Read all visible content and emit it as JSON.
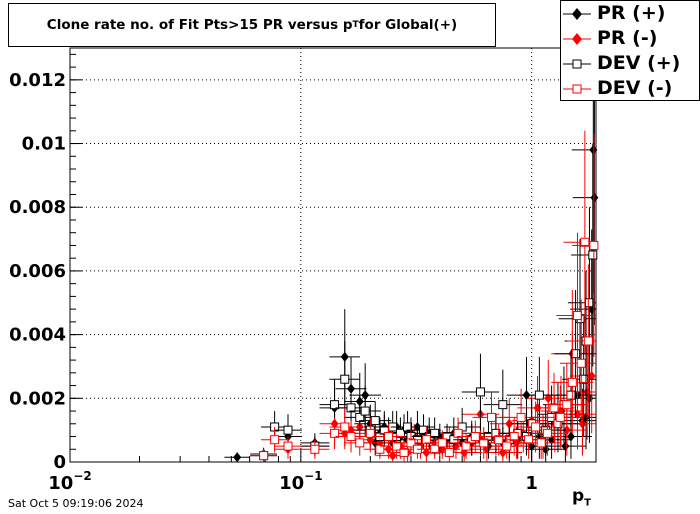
{
  "chart_data": {
    "type": "scatter",
    "title_main": "Clone rate no. of Fit Pts>15 PR versus p",
    "title_sub": "T",
    "title_tail": " for Global(+)",
    "xlabel_main": "p",
    "xlabel_sub": "T",
    "x_scale": "log",
    "xlim": [
      0.01,
      1.9
    ],
    "ylim": [
      0,
      0.013
    ],
    "x_ticks": [
      {
        "value": 0.01,
        "base": "10",
        "exp": "−2"
      },
      {
        "value": 0.1,
        "base": "10",
        "exp": "−1"
      },
      {
        "value": 1,
        "base": "1",
        "exp": ""
      }
    ],
    "y_ticks": [
      {
        "value": 0,
        "label": "0"
      },
      {
        "value": 0.002,
        "label": "0.002"
      },
      {
        "value": 0.004,
        "label": "0.004"
      },
      {
        "value": 0.006,
        "label": "0.006"
      },
      {
        "value": 0.008,
        "label": "0.008"
      },
      {
        "value": 0.01,
        "label": "0.01"
      },
      {
        "value": 0.012,
        "label": "0.012"
      }
    ],
    "grid": true,
    "legend_position": "top-right",
    "footer": "Sat Oct  5 09:19:06 2024",
    "series": [
      {
        "name": "PR (+)",
        "marker": "diamond",
        "filled": true,
        "color": "#000000",
        "points": [
          [
            0.053,
            0.00015,
            0.00015
          ],
          [
            0.069,
            0.00025,
            0.0002
          ],
          [
            0.088,
            0.0008,
            0.0004
          ],
          [
            0.115,
            0.0006,
            0.0003
          ],
          [
            0.14,
            0.0017,
            0.0008
          ],
          [
            0.155,
            0.0033,
            0.0015
          ],
          [
            0.165,
            0.0023,
            0.001
          ],
          [
            0.18,
            0.0019,
            0.0009
          ],
          [
            0.19,
            0.0021,
            0.001
          ],
          [
            0.2,
            0.0012,
            0.0006
          ],
          [
            0.21,
            0.0006,
            0.0004
          ],
          [
            0.22,
            0.0009,
            0.0005
          ],
          [
            0.23,
            0.0011,
            0.0005
          ],
          [
            0.24,
            0.0009,
            0.0005
          ],
          [
            0.25,
            0.0006,
            0.0004
          ],
          [
            0.26,
            0.0011,
            0.0005
          ],
          [
            0.27,
            0.0008,
            0.0004
          ],
          [
            0.28,
            0.001,
            0.0005
          ],
          [
            0.29,
            0.0007,
            0.0004
          ],
          [
            0.3,
            0.0009,
            0.0005
          ],
          [
            0.32,
            0.0011,
            0.0005
          ],
          [
            0.34,
            0.0008,
            0.0004
          ],
          [
            0.36,
            0.0009,
            0.0005
          ],
          [
            0.38,
            0.0006,
            0.0004
          ],
          [
            0.4,
            0.0008,
            0.0004
          ],
          [
            0.43,
            0.0007,
            0.0004
          ],
          [
            0.46,
            0.0009,
            0.0005
          ],
          [
            0.5,
            0.0006,
            0.0004
          ],
          [
            0.55,
            0.0008,
            0.0005
          ],
          [
            0.6,
            0.0007,
            0.0005
          ],
          [
            0.65,
            0.0005,
            0.0004
          ],
          [
            0.7,
            0.0009,
            0.0006
          ],
          [
            0.75,
            0.0006,
            0.0005
          ],
          [
            0.8,
            0.0006,
            0.0005
          ],
          [
            0.87,
            0.0007,
            0.0006
          ],
          [
            0.95,
            0.0021,
            0.0012
          ],
          [
            1.0,
            0.0005,
            0.0005
          ],
          [
            1.08,
            0.0008,
            0.0007
          ],
          [
            1.15,
            0.0004,
            0.0004
          ],
          [
            1.22,
            0.0007,
            0.0006
          ],
          [
            1.3,
            0.0015,
            0.001
          ],
          [
            1.4,
            0.0005,
            0.0005
          ],
          [
            1.48,
            0.0008,
            0.0007
          ],
          [
            1.58,
            0.0021,
            0.0013
          ],
          [
            1.66,
            0.0013,
            0.001
          ],
          [
            1.72,
            0.0014,
            0.001
          ],
          [
            1.78,
            0.002,
            0.0014
          ],
          [
            1.82,
            0.0048,
            0.0025
          ],
          [
            1.85,
            0.0098,
            0.0045
          ],
          [
            1.87,
            0.0083,
            0.004
          ]
        ]
      },
      {
        "name": "PR (-)",
        "marker": "diamond",
        "filled": true,
        "color": "#ff0000",
        "points": [
          [
            0.069,
            0.0002,
            0.0002
          ],
          [
            0.088,
            0.0004,
            0.0003
          ],
          [
            0.115,
            0.0005,
            0.0003
          ],
          [
            0.14,
            0.0012,
            0.0007
          ],
          [
            0.155,
            0.0009,
            0.0005
          ],
          [
            0.165,
            0.001,
            0.0006
          ],
          [
            0.18,
            0.0011,
            0.0006
          ],
          [
            0.2,
            0.0007,
            0.0004
          ],
          [
            0.22,
            0.0006,
            0.0004
          ],
          [
            0.24,
            0.0004,
            0.0003
          ],
          [
            0.25,
            0.0002,
            0.0002
          ],
          [
            0.27,
            0.0005,
            0.0004
          ],
          [
            0.29,
            0.0003,
            0.0003
          ],
          [
            0.31,
            0.0008,
            0.0004
          ],
          [
            0.33,
            0.0005,
            0.0004
          ],
          [
            0.35,
            0.0003,
            0.0003
          ],
          [
            0.38,
            0.0006,
            0.0004
          ],
          [
            0.41,
            0.0004,
            0.0003
          ],
          [
            0.44,
            0.0007,
            0.0004
          ],
          [
            0.47,
            0.0005,
            0.0004
          ],
          [
            0.51,
            0.0003,
            0.0003
          ],
          [
            0.55,
            0.0006,
            0.0004
          ],
          [
            0.6,
            0.0015,
            0.0008
          ],
          [
            0.64,
            0.0004,
            0.0004
          ],
          [
            0.7,
            0.0007,
            0.0005
          ],
          [
            0.75,
            0.0003,
            0.0003
          ],
          [
            0.8,
            0.0012,
            0.0008
          ],
          [
            0.86,
            0.0006,
            0.0005
          ],
          [
            0.92,
            0.0009,
            0.0006
          ],
          [
            1.0,
            0.0013,
            0.0008
          ],
          [
            1.06,
            0.0017,
            0.001
          ],
          [
            1.12,
            0.0008,
            0.0007
          ],
          [
            1.18,
            0.002,
            0.0012
          ],
          [
            1.26,
            0.0012,
            0.0009
          ],
          [
            1.34,
            0.0016,
            0.0011
          ],
          [
            1.42,
            0.001,
            0.0008
          ],
          [
            1.5,
            0.0034,
            0.002
          ],
          [
            1.58,
            0.0015,
            0.0011
          ],
          [
            1.66,
            0.0012,
            0.001
          ],
          [
            1.74,
            0.0022,
            0.0015
          ],
          [
            1.82,
            0.0027,
            0.0018
          ]
        ]
      },
      {
        "name": "DEV (+)",
        "marker": "square",
        "filled": false,
        "color": "#000000",
        "points": [
          [
            0.069,
            0.0002,
            0.0002
          ],
          [
            0.077,
            0.0011,
            0.0005
          ],
          [
            0.088,
            0.001,
            0.0005
          ],
          [
            0.115,
            0.0005,
            0.0003
          ],
          [
            0.14,
            0.0018,
            0.0008
          ],
          [
            0.155,
            0.0026,
            0.0012
          ],
          [
            0.165,
            0.0017,
            0.0008
          ],
          [
            0.18,
            0.0014,
            0.0007
          ],
          [
            0.19,
            0.0016,
            0.0008
          ],
          [
            0.2,
            0.001,
            0.0005
          ],
          [
            0.21,
            0.0013,
            0.0006
          ],
          [
            0.22,
            0.0008,
            0.0005
          ],
          [
            0.23,
            0.001,
            0.0005
          ],
          [
            0.25,
            0.0011,
            0.0005
          ],
          [
            0.26,
            0.0008,
            0.0004
          ],
          [
            0.27,
            0.0009,
            0.0005
          ],
          [
            0.29,
            0.0011,
            0.0005
          ],
          [
            0.3,
            0.0008,
            0.0004
          ],
          [
            0.32,
            0.0007,
            0.0004
          ],
          [
            0.34,
            0.001,
            0.0005
          ],
          [
            0.36,
            0.0008,
            0.0004
          ],
          [
            0.38,
            0.0009,
            0.0005
          ],
          [
            0.4,
            0.0006,
            0.0004
          ],
          [
            0.43,
            0.0008,
            0.0004
          ],
          [
            0.46,
            0.0007,
            0.0004
          ],
          [
            0.5,
            0.0011,
            0.0006
          ],
          [
            0.55,
            0.0007,
            0.0005
          ],
          [
            0.6,
            0.0022,
            0.0012
          ],
          [
            0.65,
            0.0008,
            0.0005
          ],
          [
            0.7,
            0.0009,
            0.0006
          ],
          [
            0.75,
            0.0018,
            0.0011
          ],
          [
            0.8,
            0.0007,
            0.0005
          ],
          [
            0.87,
            0.0009,
            0.0006
          ],
          [
            0.95,
            0.0008,
            0.0006
          ],
          [
            1.0,
            0.0012,
            0.0008
          ],
          [
            1.08,
            0.0021,
            0.0012
          ],
          [
            1.15,
            0.001,
            0.0008
          ],
          [
            1.22,
            0.0014,
            0.001
          ],
          [
            1.3,
            0.0012,
            0.0009
          ],
          [
            1.38,
            0.0018,
            0.0012
          ],
          [
            1.48,
            0.0021,
            0.0014
          ],
          [
            1.55,
            0.0034,
            0.002
          ],
          [
            1.62,
            0.0045,
            0.0025
          ],
          [
            1.68,
            0.0026,
            0.0018
          ],
          [
            1.72,
            0.0038,
            0.0022
          ],
          [
            1.78,
            0.005,
            0.003
          ],
          [
            1.84,
            0.0065,
            0.0035
          ]
        ]
      },
      {
        "name": "DEV (-)",
        "marker": "square",
        "filled": false,
        "color": "#ff0000",
        "points": [
          [
            0.069,
            0.0002,
            0.0002
          ],
          [
            0.077,
            0.0007,
            0.0004
          ],
          [
            0.088,
            0.0005,
            0.0003
          ],
          [
            0.115,
            0.0004,
            0.0003
          ],
          [
            0.14,
            0.0009,
            0.0005
          ],
          [
            0.155,
            0.0011,
            0.0006
          ],
          [
            0.165,
            0.0008,
            0.0005
          ],
          [
            0.18,
            0.0006,
            0.0004
          ],
          [
            0.2,
            0.0009,
            0.0005
          ],
          [
            0.22,
            0.0004,
            0.0003
          ],
          [
            0.24,
            0.0008,
            0.0004
          ],
          [
            0.26,
            0.0005,
            0.0004
          ],
          [
            0.28,
            0.0003,
            0.0003
          ],
          [
            0.3,
            0.0006,
            0.0004
          ],
          [
            0.32,
            0.0004,
            0.0003
          ],
          [
            0.35,
            0.0007,
            0.0004
          ],
          [
            0.38,
            0.0004,
            0.0003
          ],
          [
            0.41,
            0.0006,
            0.0004
          ],
          [
            0.44,
            0.0003,
            0.0003
          ],
          [
            0.48,
            0.0009,
            0.0005
          ],
          [
            0.52,
            0.0005,
            0.0004
          ],
          [
            0.57,
            0.0008,
            0.0005
          ],
          [
            0.62,
            0.0006,
            0.0005
          ],
          [
            0.67,
            0.0014,
            0.0008
          ],
          [
            0.72,
            0.0007,
            0.0005
          ],
          [
            0.78,
            0.0005,
            0.0004
          ],
          [
            0.84,
            0.0008,
            0.0006
          ],
          [
            0.9,
            0.0014,
            0.0009
          ],
          [
            0.97,
            0.0007,
            0.0006
          ],
          [
            1.04,
            0.0011,
            0.0008
          ],
          [
            1.1,
            0.0006,
            0.0005
          ],
          [
            1.17,
            0.0009,
            0.0007
          ],
          [
            1.25,
            0.0017,
            0.0011
          ],
          [
            1.33,
            0.0014,
            0.001
          ],
          [
            1.42,
            0.0018,
            0.0013
          ],
          [
            1.5,
            0.0025,
            0.0016
          ],
          [
            1.58,
            0.0046,
            0.0026
          ],
          [
            1.64,
            0.0031,
            0.002
          ],
          [
            1.7,
            0.0069,
            0.0035
          ],
          [
            1.76,
            0.0038,
            0.0024
          ],
          [
            1.86,
            0.0068,
            0.0035
          ]
        ]
      }
    ]
  }
}
